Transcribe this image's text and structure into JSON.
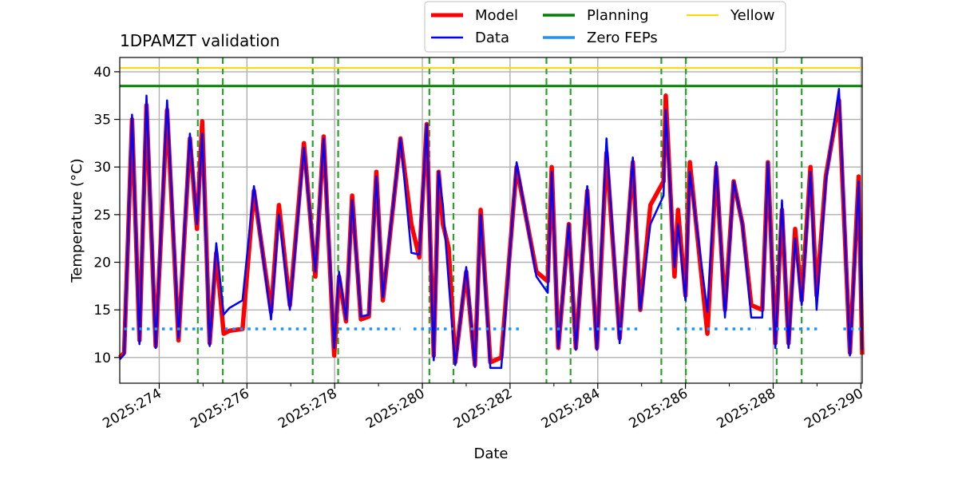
{
  "chart_data": {
    "type": "line",
    "title": "1DPAMZT validation",
    "xlabel": "Date",
    "ylabel": "Temperature (°C)",
    "xlim": [
      273.1,
      290.03
    ],
    "ylim": [
      7.3,
      41.5
    ],
    "x_ticks": [
      {
        "value": 274,
        "label": "2025:274"
      },
      {
        "value": 276,
        "label": "2025:276"
      },
      {
        "value": 278,
        "label": "2025:278"
      },
      {
        "value": 280,
        "label": "2025:280"
      },
      {
        "value": 282,
        "label": "2025:282"
      },
      {
        "value": 284,
        "label": "2025:284"
      },
      {
        "value": 286,
        "label": "2025:286"
      },
      {
        "value": 288,
        "label": "2025:288"
      },
      {
        "value": 290,
        "label": "2025:290"
      }
    ],
    "x_minor_ticks": [
      275,
      277,
      279,
      281,
      283,
      285,
      287,
      289
    ],
    "y_ticks": [
      10,
      15,
      20,
      25,
      30,
      35,
      40
    ],
    "grid": true,
    "legend": {
      "position": "top-center-outside",
      "columns": 3
    },
    "limits": {
      "planning": 38.5,
      "yellow": 40.4,
      "zero_feps": 13.0
    },
    "colors": {
      "model": "#ff0000",
      "data": "#0000ff",
      "planning": "#008000",
      "zero_feps": "#1e90ff",
      "yellow": "#ffd700",
      "events": "#2ca02c",
      "grid": "#b0b0b0"
    },
    "legend_entries": [
      {
        "key": "model",
        "label": "Model"
      },
      {
        "key": "data",
        "label": "Data"
      },
      {
        "key": "planning",
        "label": "Planning"
      },
      {
        "key": "zero_feps",
        "label": "Zero FEPs"
      },
      {
        "key": "yellow",
        "label": "Yellow"
      }
    ],
    "event_lines_x": [
      274.88,
      275.45,
      277.5,
      278.08,
      280.16,
      280.71,
      282.83,
      283.38,
      285.45,
      286.01,
      288.08,
      288.65
    ],
    "zero_fep_intervals": [
      [
        273.2,
        275.0
      ],
      [
        275.5,
        276.5
      ],
      [
        276.6,
        277.4
      ],
      [
        278.1,
        279.5
      ],
      [
        279.8,
        280.7
      ],
      [
        281.1,
        282.2
      ],
      [
        282.9,
        283.4
      ],
      [
        283.8,
        284.9
      ],
      [
        285.8,
        286.8
      ],
      [
        286.9,
        287.6
      ],
      [
        287.9,
        289.0
      ],
      [
        289.6,
        290.0
      ]
    ],
    "series": [
      {
        "name": "Model",
        "x": [
          273.1,
          273.2,
          273.38,
          273.55,
          273.71,
          273.92,
          274.18,
          274.44,
          274.7,
          274.86,
          274.98,
          275.15,
          275.3,
          275.47,
          275.6,
          275.9,
          276.16,
          276.55,
          276.73,
          276.98,
          277.3,
          277.56,
          277.75,
          277.99,
          278.1,
          278.26,
          278.4,
          278.6,
          278.78,
          278.95,
          279.1,
          279.5,
          279.75,
          279.93,
          280.1,
          280.26,
          280.37,
          280.47,
          280.6,
          280.75,
          281.0,
          281.2,
          281.33,
          281.55,
          281.8,
          282.15,
          282.6,
          282.86,
          282.95,
          283.1,
          283.34,
          283.5,
          283.76,
          283.98,
          284.2,
          284.5,
          284.8,
          284.97,
          285.2,
          285.5,
          285.55,
          285.75,
          285.83,
          286.0,
          286.1,
          286.5,
          286.7,
          286.9,
          287.1,
          287.3,
          287.5,
          287.75,
          287.88,
          288.05,
          288.2,
          288.35,
          288.5,
          288.65,
          288.85,
          288.99,
          289.2,
          289.5,
          289.75,
          289.95,
          290.03
        ],
        "y": [
          10.0,
          10.5,
          35.0,
          11.8,
          36.5,
          11.2,
          36.0,
          11.8,
          33.0,
          23.5,
          34.8,
          11.5,
          21.0,
          12.5,
          12.8,
          13.0,
          27.5,
          14.8,
          26.0,
          15.5,
          32.5,
          18.5,
          33.2,
          10.2,
          18.5,
          13.8,
          27.0,
          14.0,
          14.3,
          29.5,
          16.0,
          33.0,
          24.0,
          20.5,
          34.5,
          10.2,
          29.5,
          24.0,
          21.5,
          9.5,
          19.0,
          9.2,
          25.5,
          9.5,
          10.0,
          30.0,
          19.0,
          18.0,
          30.0,
          11.0,
          24.0,
          11.0,
          27.5,
          11.0,
          31.5,
          12.0,
          30.5,
          15.0,
          26.0,
          28.5,
          37.5,
          18.5,
          25.5,
          16.5,
          30.5,
          12.5,
          30.0,
          15.0,
          28.5,
          24.0,
          15.5,
          15.0,
          30.5,
          11.5,
          25.5,
          11.5,
          23.5,
          16.0,
          30.0,
          16.5,
          29.0,
          37.0,
          10.5,
          29.0,
          10.3
        ]
      },
      {
        "name": "Data",
        "x": [
          273.1,
          273.2,
          273.38,
          273.55,
          273.71,
          273.92,
          274.18,
          274.44,
          274.7,
          274.86,
          274.98,
          275.15,
          275.3,
          275.47,
          275.6,
          275.9,
          276.16,
          276.55,
          276.73,
          276.98,
          277.3,
          277.56,
          277.75,
          277.99,
          278.1,
          278.26,
          278.4,
          278.6,
          278.78,
          278.95,
          279.1,
          279.5,
          279.75,
          279.93,
          280.1,
          280.26,
          280.37,
          280.47,
          280.6,
          280.75,
          281.0,
          281.2,
          281.33,
          281.55,
          281.8,
          282.15,
          282.6,
          282.86,
          282.95,
          283.1,
          283.34,
          283.5,
          283.76,
          283.98,
          284.2,
          284.5,
          284.8,
          284.97,
          285.2,
          285.5,
          285.55,
          285.75,
          285.83,
          286.0,
          286.1,
          286.5,
          286.7,
          286.9,
          287.1,
          287.3,
          287.5,
          287.75,
          287.88,
          288.05,
          288.2,
          288.35,
          288.5,
          288.65,
          288.85,
          288.99,
          289.2,
          289.5,
          289.75,
          289.95,
          290.03
        ],
        "y": [
          9.8,
          10.3,
          35.5,
          11.4,
          37.5,
          11.0,
          37.0,
          12.0,
          33.5,
          24.0,
          33.5,
          11.2,
          22.0,
          14.5,
          15.2,
          16.0,
          28.0,
          14.0,
          25.0,
          15.0,
          32.0,
          19.0,
          33.0,
          11.0,
          19.0,
          14.0,
          26.5,
          14.3,
          14.5,
          29.0,
          16.3,
          33.0,
          21.0,
          20.8,
          34.5,
          9.7,
          29.5,
          26.0,
          18.0,
          9.2,
          19.5,
          9.0,
          25.0,
          8.9,
          8.9,
          30.5,
          18.5,
          16.8,
          29.5,
          11.0,
          24.0,
          10.8,
          28.0,
          10.8,
          33.0,
          11.5,
          31.0,
          15.0,
          24.0,
          27.0,
          36.0,
          19.5,
          24.0,
          16.0,
          29.5,
          14.8,
          30.5,
          14.2,
          28.5,
          24.0,
          14.2,
          14.2,
          30.5,
          11.0,
          26.5,
          11.0,
          22.5,
          15.5,
          29.5,
          15.0,
          28.5,
          38.2,
          10.2,
          28.5,
          10.8
        ]
      }
    ]
  }
}
